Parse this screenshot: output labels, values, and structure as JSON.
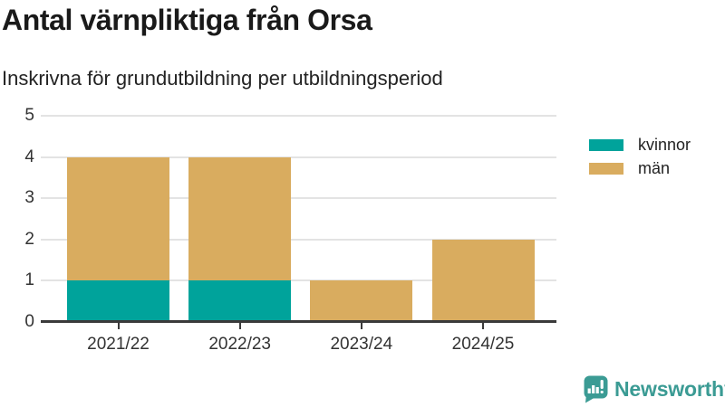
{
  "chart_data": {
    "type": "bar",
    "stacked": true,
    "title": "Antal värnpliktiga från Orsa",
    "subtitle": "Inskrivna för grundutbildning per utbildningsperiod",
    "categories": [
      "2021/22",
      "2022/23",
      "2023/24",
      "2024/25"
    ],
    "series": [
      {
        "name": "kvinnor",
        "color": "#00a39b",
        "values": [
          1,
          1,
          0,
          0
        ]
      },
      {
        "name": "män",
        "color": "#d9ac5f",
        "values": [
          3,
          3,
          1,
          2
        ]
      }
    ],
    "totals": [
      4,
      4,
      1,
      2
    ],
    "xlabel": "",
    "ylabel": "",
    "ylim": [
      0,
      5
    ],
    "yticks": [
      0,
      1,
      2,
      3,
      4,
      5
    ],
    "grid": "horizontal-light",
    "legend_position": "outside-right-top"
  },
  "colors": {
    "axis": "#3a3a3a",
    "gridline": "#e3e3e3",
    "tick_label": "#333333",
    "brand": "#3b9b94"
  },
  "footer": {
    "brand": "Newsworthy",
    "logo_icon": "bar-chart-speech-bubble-icon"
  }
}
